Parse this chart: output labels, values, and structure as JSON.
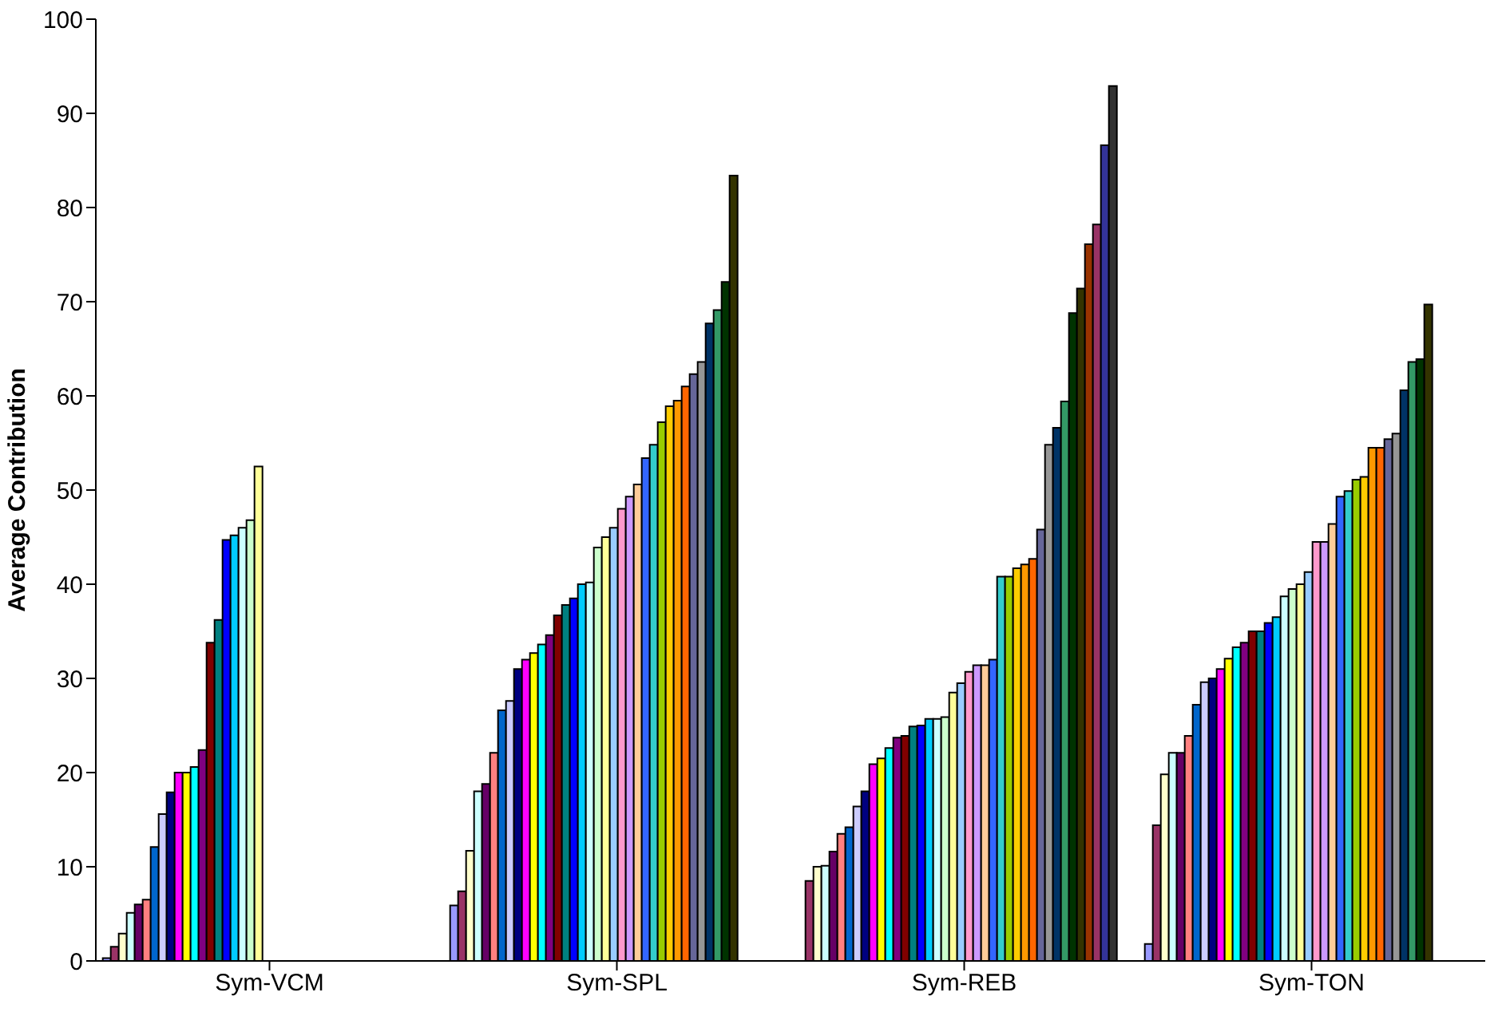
{
  "chart_data": {
    "type": "bar",
    "categories": [
      "Sym-VCM",
      "Sym-SPL",
      "Sym-REB",
      "Sym-TON"
    ],
    "ylabel": "Average Contribution",
    "ylim": [
      0,
      100
    ],
    "yticks": [
      0,
      10,
      20,
      30,
      40,
      50,
      60,
      70,
      80,
      90,
      100
    ],
    "grid": false,
    "legend": false,
    "series": [
      {
        "color": "#9999ff",
        "values": [
          0.3,
          5.9,
          null,
          1.8
        ]
      },
      {
        "color": "#993366",
        "values": [
          1.5,
          7.4,
          8.5,
          14.4
        ]
      },
      {
        "color": "#ffffcc",
        "values": [
          2.9,
          11.7,
          10.0,
          19.8
        ]
      },
      {
        "color": "#ccffff",
        "values": [
          5.1,
          18.0,
          10.1,
          22.1
        ]
      },
      {
        "color": "#660066",
        "values": [
          6.0,
          18.8,
          11.6,
          22.1
        ]
      },
      {
        "color": "#ff8080",
        "values": [
          6.5,
          22.1,
          13.5,
          23.9
        ]
      },
      {
        "color": "#0066cc",
        "values": [
          12.1,
          26.6,
          14.2,
          27.2
        ]
      },
      {
        "color": "#ccccff",
        "values": [
          15.6,
          27.6,
          16.4,
          29.6
        ]
      },
      {
        "color": "#000080",
        "values": [
          17.9,
          31.0,
          18.0,
          30.0
        ]
      },
      {
        "color": "#ff00ff",
        "values": [
          20.0,
          32.0,
          20.9,
          31.0
        ]
      },
      {
        "color": "#ffff00",
        "values": [
          20.0,
          32.7,
          21.5,
          32.1
        ]
      },
      {
        "color": "#00ffff",
        "values": [
          20.6,
          33.6,
          22.6,
          33.3
        ]
      },
      {
        "color": "#800080",
        "values": [
          22.4,
          34.6,
          23.7,
          33.8
        ]
      },
      {
        "color": "#800000",
        "values": [
          33.8,
          36.7,
          23.9,
          35.0
        ]
      },
      {
        "color": "#008080",
        "values": [
          36.2,
          37.8,
          24.9,
          35.0
        ]
      },
      {
        "color": "#0000ff",
        "values": [
          44.7,
          38.5,
          25.0,
          35.9
        ]
      },
      {
        "color": "#00ccff",
        "values": [
          45.2,
          40.0,
          25.7,
          36.5
        ]
      },
      {
        "color": "#ccffff",
        "values": [
          46.0,
          40.2,
          25.7,
          38.7
        ]
      },
      {
        "color": "#ccffcc",
        "values": [
          46.8,
          43.9,
          25.9,
          39.5
        ]
      },
      {
        "color": "#ffff99",
        "values": [
          52.5,
          45.0,
          28.5,
          40.0
        ]
      },
      {
        "color": "#99ccff",
        "values": [
          null,
          46.0,
          29.5,
          41.3
        ]
      },
      {
        "color": "#ff99cc",
        "values": [
          null,
          48.0,
          30.7,
          44.5
        ]
      },
      {
        "color": "#cc99ff",
        "values": [
          null,
          49.3,
          31.4,
          44.5
        ]
      },
      {
        "color": "#ffcc99",
        "values": [
          null,
          50.6,
          31.4,
          46.4
        ]
      },
      {
        "color": "#3366ff",
        "values": [
          null,
          53.4,
          32.0,
          49.3
        ]
      },
      {
        "color": "#33cccc",
        "values": [
          null,
          54.8,
          40.8,
          49.9
        ]
      },
      {
        "color": "#99cc00",
        "values": [
          null,
          57.2,
          40.8,
          51.1
        ]
      },
      {
        "color": "#ffcc00",
        "values": [
          null,
          58.9,
          41.7,
          51.4
        ]
      },
      {
        "color": "#ff9900",
        "values": [
          null,
          59.5,
          42.1,
          54.5
        ]
      },
      {
        "color": "#ff6600",
        "values": [
          null,
          61.0,
          42.7,
          54.5
        ]
      },
      {
        "color": "#666699",
        "values": [
          null,
          62.3,
          45.8,
          55.4
        ]
      },
      {
        "color": "#969696",
        "values": [
          null,
          63.6,
          54.8,
          56.0
        ]
      },
      {
        "color": "#003366",
        "values": [
          null,
          67.7,
          56.6,
          60.6
        ]
      },
      {
        "color": "#339966",
        "values": [
          null,
          69.1,
          59.4,
          63.6
        ]
      },
      {
        "color": "#003300",
        "values": [
          null,
          72.1,
          68.8,
          63.9
        ]
      },
      {
        "color": "#333300",
        "values": [
          null,
          83.4,
          71.4,
          69.7
        ]
      },
      {
        "color": "#993300",
        "values": [
          null,
          null,
          76.1,
          null
        ]
      },
      {
        "color": "#993366",
        "values": [
          null,
          null,
          78.2,
          null
        ]
      },
      {
        "color": "#333399",
        "values": [
          null,
          null,
          86.6,
          null
        ]
      },
      {
        "color": "#333333",
        "values": [
          null,
          null,
          92.9,
          null
        ]
      }
    ]
  }
}
